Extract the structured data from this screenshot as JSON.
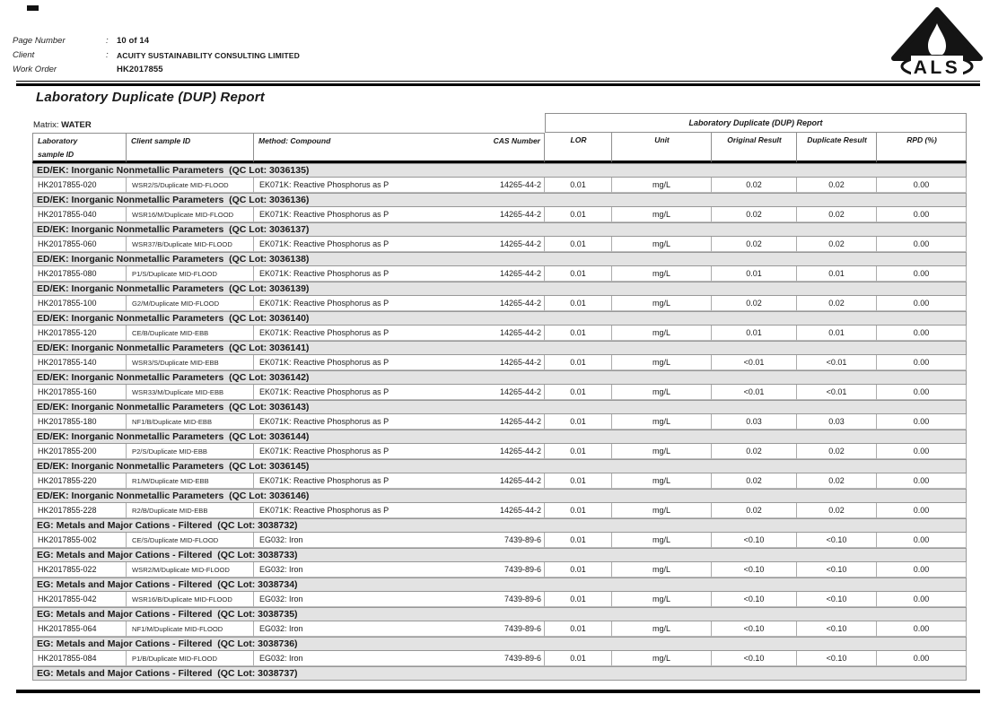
{
  "colors": {
    "section_bg": "#e3e3e3",
    "rule_color": "#000000",
    "table_border": "#8e8e8e",
    "logo_color": "#141414"
  },
  "header": {
    "fields": [
      {
        "label": "Page Number",
        "sep": ":",
        "value": "10 of 14"
      },
      {
        "label": "Client",
        "sep": ":",
        "value": "ACUITY SUSTAINABILITY CONSULTING LIMITED"
      },
      {
        "label": "Work Order",
        "sep": "",
        "value": "HK2017855"
      }
    ],
    "logo_text": "ALS"
  },
  "title": "Laboratory Duplicate (DUP) Report",
  "matrix": {
    "label": "Matrix:",
    "value": "WATER"
  },
  "table": {
    "group_header": "Laboratory Duplicate (DUP) Report",
    "columns": {
      "lab_line1": "Laboratory",
      "lab_line2": "sample ID",
      "client": "Client sample ID",
      "method": "Method: Compound",
      "cas": "CAS Number",
      "lor": "LOR",
      "unit": "Unit",
      "original": "Original Result",
      "duplicate": "Duplicate Result",
      "rpd": "RPD (%)"
    },
    "sections": [
      {
        "header": "ED/EK: Inorganic Nonmetallic Parameters  (QC Lot: 3036135)",
        "rows": [
          {
            "lab": "HK2017855-020",
            "client": "WSR2/S/Duplicate MID-FLOOD",
            "method": "EK071K: Reactive Phosphorus as P",
            "cas": "14265-44-2",
            "lor": "0.01",
            "unit": "mg/L",
            "original": "0.02",
            "duplicate": "0.02",
            "rpd": "0.00"
          }
        ]
      },
      {
        "header": "ED/EK: Inorganic Nonmetallic Parameters  (QC Lot: 3036136)",
        "rows": [
          {
            "lab": "HK2017855-040",
            "client": "WSR16/M/Duplicate MID-FLOOD",
            "method": "EK071K: Reactive Phosphorus as P",
            "cas": "14265-44-2",
            "lor": "0.01",
            "unit": "mg/L",
            "original": "0.02",
            "duplicate": "0.02",
            "rpd": "0.00"
          }
        ]
      },
      {
        "header": "ED/EK: Inorganic Nonmetallic Parameters  (QC Lot: 3036137)",
        "rows": [
          {
            "lab": "HK2017855-060",
            "client": "WSR37/B/Duplicate MID-FLOOD",
            "method": "EK071K: Reactive Phosphorus as P",
            "cas": "14265-44-2",
            "lor": "0.01",
            "unit": "mg/L",
            "original": "0.02",
            "duplicate": "0.02",
            "rpd": "0.00"
          }
        ]
      },
      {
        "header": "ED/EK: Inorganic Nonmetallic Parameters  (QC Lot: 3036138)",
        "rows": [
          {
            "lab": "HK2017855-080",
            "client": "P1/S/Duplicate MID-FLOOD",
            "method": "EK071K: Reactive Phosphorus as P",
            "cas": "14265-44-2",
            "lor": "0.01",
            "unit": "mg/L",
            "original": "0.01",
            "duplicate": "0.01",
            "rpd": "0.00"
          }
        ]
      },
      {
        "header": "ED/EK: Inorganic Nonmetallic Parameters  (QC Lot: 3036139)",
        "rows": [
          {
            "lab": "HK2017855-100",
            "client": "G2/M/Duplicate MID-FLOOD",
            "method": "EK071K: Reactive Phosphorus as P",
            "cas": "14265-44-2",
            "lor": "0.01",
            "unit": "mg/L",
            "original": "0.02",
            "duplicate": "0.02",
            "rpd": "0.00"
          }
        ]
      },
      {
        "header": "ED/EK: Inorganic Nonmetallic Parameters  (QC Lot: 3036140)",
        "rows": [
          {
            "lab": "HK2017855-120",
            "client": "CE/B/Duplicate MID-EBB",
            "method": "EK071K: Reactive Phosphorus as P",
            "cas": "14265-44-2",
            "lor": "0.01",
            "unit": "mg/L",
            "original": "0.01",
            "duplicate": "0.01",
            "rpd": "0.00"
          }
        ]
      },
      {
        "header": "ED/EK: Inorganic Nonmetallic Parameters  (QC Lot: 3036141)",
        "rows": [
          {
            "lab": "HK2017855-140",
            "client": "WSR3/S/Duplicate MID-EBB",
            "method": "EK071K: Reactive Phosphorus as P",
            "cas": "14265-44-2",
            "lor": "0.01",
            "unit": "mg/L",
            "original": "<0.01",
            "duplicate": "<0.01",
            "rpd": "0.00"
          }
        ]
      },
      {
        "header": "ED/EK: Inorganic Nonmetallic Parameters  (QC Lot: 3036142)",
        "rows": [
          {
            "lab": "HK2017855-160",
            "client": "WSR33/M/Duplicate MID-EBB",
            "method": "EK071K: Reactive Phosphorus as P",
            "cas": "14265-44-2",
            "lor": "0.01",
            "unit": "mg/L",
            "original": "<0.01",
            "duplicate": "<0.01",
            "rpd": "0.00"
          }
        ]
      },
      {
        "header": "ED/EK: Inorganic Nonmetallic Parameters  (QC Lot: 3036143)",
        "rows": [
          {
            "lab": "HK2017855-180",
            "client": "NF1/B/Duplicate MID-EBB",
            "method": "EK071K: Reactive Phosphorus as P",
            "cas": "14265-44-2",
            "lor": "0.01",
            "unit": "mg/L",
            "original": "0.03",
            "duplicate": "0.03",
            "rpd": "0.00"
          }
        ]
      },
      {
        "header": "ED/EK: Inorganic Nonmetallic Parameters  (QC Lot: 3036144)",
        "rows": [
          {
            "lab": "HK2017855-200",
            "client": "P2/S/Duplicate MID-EBB",
            "method": "EK071K: Reactive Phosphorus as P",
            "cas": "14265-44-2",
            "lor": "0.01",
            "unit": "mg/L",
            "original": "0.02",
            "duplicate": "0.02",
            "rpd": "0.00"
          }
        ]
      },
      {
        "header": "ED/EK: Inorganic Nonmetallic Parameters  (QC Lot: 3036145)",
        "rows": [
          {
            "lab": "HK2017855-220",
            "client": "R1/M/Duplicate MID-EBB",
            "method": "EK071K: Reactive Phosphorus as P",
            "cas": "14265-44-2",
            "lor": "0.01",
            "unit": "mg/L",
            "original": "0.02",
            "duplicate": "0.02",
            "rpd": "0.00"
          }
        ]
      },
      {
        "header": "ED/EK: Inorganic Nonmetallic Parameters  (QC Lot: 3036146)",
        "rows": [
          {
            "lab": "HK2017855-228",
            "client": "R2/B/Duplicate MID-EBB",
            "method": "EK071K: Reactive Phosphorus as P",
            "cas": "14265-44-2",
            "lor": "0.01",
            "unit": "mg/L",
            "original": "0.02",
            "duplicate": "0.02",
            "rpd": "0.00"
          }
        ]
      },
      {
        "header": "EG: Metals and Major Cations - Filtered  (QC Lot: 3038732)",
        "rows": [
          {
            "lab": "HK2017855-002",
            "client": "CE/S/Duplicate MID-FLOOD",
            "method": "EG032: Iron",
            "cas": "7439-89-6",
            "lor": "0.01",
            "unit": "mg/L",
            "original": "<0.10",
            "duplicate": "<0.10",
            "rpd": "0.00"
          }
        ]
      },
      {
        "header": "EG: Metals and Major Cations - Filtered  (QC Lot: 3038733)",
        "rows": [
          {
            "lab": "HK2017855-022",
            "client": "WSR2/M/Duplicate MID-FLOOD",
            "method": "EG032: Iron",
            "cas": "7439-89-6",
            "lor": "0.01",
            "unit": "mg/L",
            "original": "<0.10",
            "duplicate": "<0.10",
            "rpd": "0.00"
          }
        ]
      },
      {
        "header": "EG: Metals and Major Cations - Filtered  (QC Lot: 3038734)",
        "rows": [
          {
            "lab": "HK2017855-042",
            "client": "WSR16/B/Duplicate MID-FLOOD",
            "method": "EG032: Iron",
            "cas": "7439-89-6",
            "lor": "0.01",
            "unit": "mg/L",
            "original": "<0.10",
            "duplicate": "<0.10",
            "rpd": "0.00"
          }
        ]
      },
      {
        "header": "EG: Metals and Major Cations - Filtered  (QC Lot: 3038735)",
        "rows": [
          {
            "lab": "HK2017855-064",
            "client": "NF1/M/Duplicate MID-FLOOD",
            "method": "EG032: Iron",
            "cas": "7439-89-6",
            "lor": "0.01",
            "unit": "mg/L",
            "original": "<0.10",
            "duplicate": "<0.10",
            "rpd": "0.00"
          }
        ]
      },
      {
        "header": "EG: Metals and Major Cations - Filtered  (QC Lot: 3038736)",
        "rows": [
          {
            "lab": "HK2017855-084",
            "client": "P1/B/Duplicate MID-FLOOD",
            "method": "EG032: Iron",
            "cas": "7439-89-6",
            "lor": "0.01",
            "unit": "mg/L",
            "original": "<0.10",
            "duplicate": "<0.10",
            "rpd": "0.00"
          }
        ]
      },
      {
        "header": "EG: Metals and Major Cations - Filtered  (QC Lot: 3038737)",
        "rows": []
      }
    ]
  }
}
